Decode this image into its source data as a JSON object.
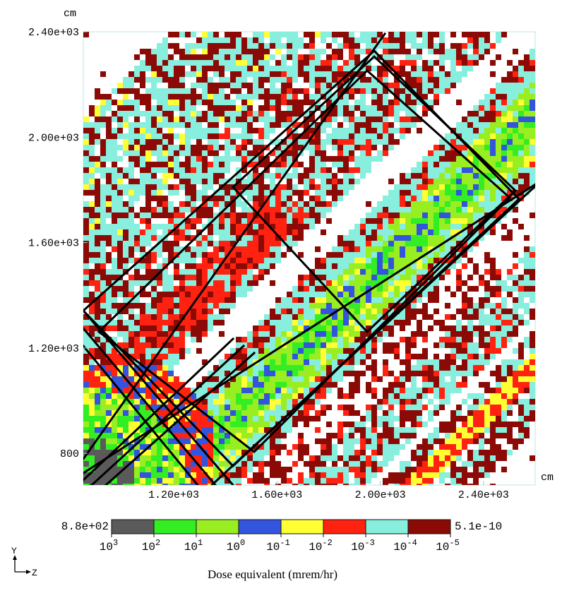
{
  "chart_data": {
    "type": "heatmap",
    "title": "",
    "x_unit": "cm",
    "y_unit": "cm",
    "xlim": [
      850,
      2600
    ],
    "ylim": [
      680,
      2400
    ],
    "x_ticks": [
      {
        "value": 1200,
        "label": "1.20e+03"
      },
      {
        "value": 1600,
        "label": "1.60e+03"
      },
      {
        "value": 2000,
        "label": "2.00e+03"
      },
      {
        "value": 2400,
        "label": "2.40e+03"
      }
    ],
    "y_ticks": [
      {
        "value": 800,
        "label": "800"
      },
      {
        "value": 1200,
        "label": "1.20e+03"
      },
      {
        "value": 1600,
        "label": "1.60e+03"
      },
      {
        "value": 2000,
        "label": "2.00e+03"
      },
      {
        "value": 2400,
        "label": "2.40e+03"
      }
    ],
    "colorbar": {
      "label": "Dose equivalent (mrem/hr)",
      "max_label": "8.8e+02",
      "min_label": "5.1e-10",
      "bins": [
        {
          "from": 1000,
          "to": 100,
          "color": "#5a5a5a"
        },
        {
          "from": 100,
          "to": 10,
          "color": "#33ee22"
        },
        {
          "from": 10,
          "to": 1,
          "color": "#99ee22"
        },
        {
          "from": 1,
          "to": 0.1,
          "color": "#3355dd"
        },
        {
          "from": 0.1,
          "to": 0.01,
          "color": "#ffff33"
        },
        {
          "from": 0.01,
          "to": 0.001,
          "color": "#ff2211"
        },
        {
          "from": 0.001,
          "to": 0.0001,
          "color": "#88eedd"
        },
        {
          "from": 0.0001,
          "to": 1e-05,
          "color": "#8b0a05"
        }
      ],
      "tick_exponents": [
        "3",
        "2",
        "1",
        "0",
        "-1",
        "-2",
        "-3",
        "-4",
        "-5"
      ]
    },
    "axis_indicator": {
      "vertical": "Y",
      "horizontal": "Z"
    }
  }
}
